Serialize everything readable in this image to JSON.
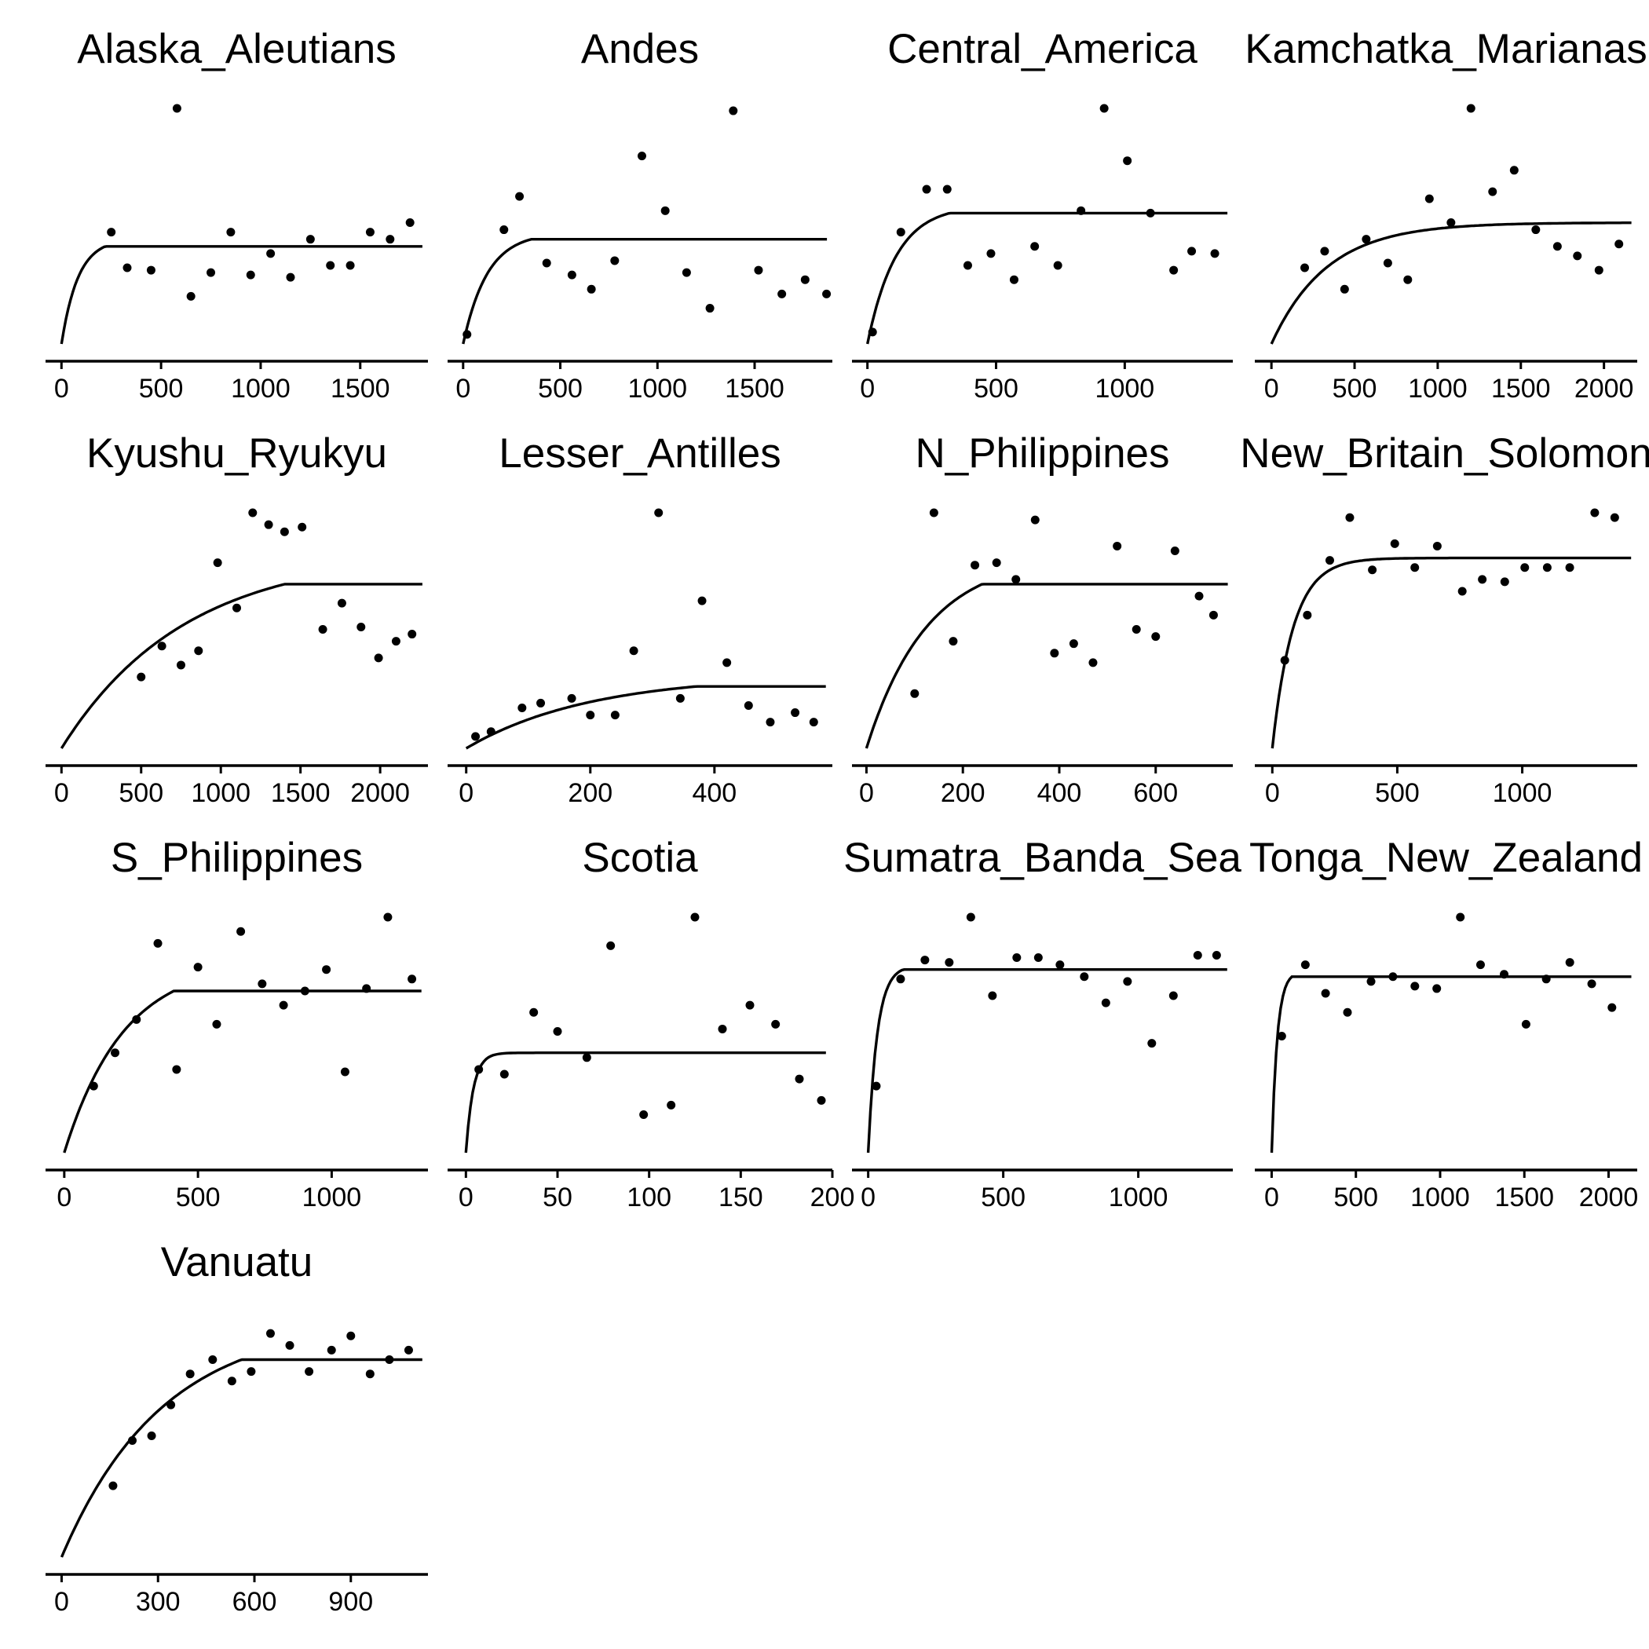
{
  "chart_data": [
    {
      "type": "scatter",
      "title": "Alaska_Aleutians",
      "x_ticks": [
        0,
        500,
        1000,
        1500
      ],
      "xlim": [
        -80,
        1840
      ],
      "ylim": [
        0,
        1
      ],
      "points": [
        [
          250,
          0.47
        ],
        [
          330,
          0.32
        ],
        [
          450,
          0.31
        ],
        [
          580,
          0.99
        ],
        [
          650,
          0.2
        ],
        [
          750,
          0.3
        ],
        [
          850,
          0.47
        ],
        [
          950,
          0.29
        ],
        [
          1050,
          0.38
        ],
        [
          1150,
          0.28
        ],
        [
          1250,
          0.44
        ],
        [
          1350,
          0.33
        ],
        [
          1450,
          0.33
        ],
        [
          1550,
          0.47
        ],
        [
          1650,
          0.44
        ],
        [
          1750,
          0.51
        ]
      ],
      "fit": {
        "plateau": 0.41,
        "x_break": 220,
        "rate": 0.012
      }
    },
    {
      "type": "scatter",
      "title": "Andes",
      "x_ticks": [
        0,
        500,
        1000,
        1500
      ],
      "xlim": [
        -80,
        1900
      ],
      "ylim": [
        0,
        1
      ],
      "points": [
        [
          20,
          0.04
        ],
        [
          210,
          0.48
        ],
        [
          290,
          0.62
        ],
        [
          430,
          0.34
        ],
        [
          560,
          0.29
        ],
        [
          660,
          0.23
        ],
        [
          780,
          0.35
        ],
        [
          920,
          0.79
        ],
        [
          1040,
          0.56
        ],
        [
          1150,
          0.3
        ],
        [
          1270,
          0.15
        ],
        [
          1390,
          0.98
        ],
        [
          1520,
          0.31
        ],
        [
          1640,
          0.21
        ],
        [
          1760,
          0.27
        ],
        [
          1870,
          0.21
        ]
      ],
      "fit": {
        "plateau": 0.44,
        "x_break": 350,
        "rate": 0.008
      }
    },
    {
      "type": "scatter",
      "title": "Central_America",
      "x_ticks": [
        0,
        500,
        1000
      ],
      "xlim": [
        -60,
        1420
      ],
      "ylim": [
        0,
        1
      ],
      "points": [
        [
          20,
          0.05
        ],
        [
          130,
          0.47
        ],
        [
          230,
          0.65
        ],
        [
          310,
          0.65
        ],
        [
          390,
          0.33
        ],
        [
          480,
          0.38
        ],
        [
          570,
          0.27
        ],
        [
          650,
          0.41
        ],
        [
          740,
          0.33
        ],
        [
          830,
          0.56
        ],
        [
          920,
          0.99
        ],
        [
          1010,
          0.77
        ],
        [
          1100,
          0.55
        ],
        [
          1190,
          0.31
        ],
        [
          1260,
          0.39
        ],
        [
          1350,
          0.38
        ]
      ],
      "fit": {
        "plateau": 0.55,
        "x_break": 320,
        "rate": 0.009
      }
    },
    {
      "type": "scatter",
      "title": "Kamchatka_Marianas",
      "x_ticks": [
        0,
        500,
        1000,
        1500,
        2000
      ],
      "xlim": [
        -100,
        2200
      ],
      "ylim": [
        0,
        1
      ],
      "points": [
        [
          200,
          0.32
        ],
        [
          320,
          0.39
        ],
        [
          440,
          0.23
        ],
        [
          570,
          0.44
        ],
        [
          700,
          0.34
        ],
        [
          820,
          0.27
        ],
        [
          950,
          0.61
        ],
        [
          1080,
          0.51
        ],
        [
          1200,
          0.99
        ],
        [
          1330,
          0.64
        ],
        [
          1460,
          0.73
        ],
        [
          1590,
          0.48
        ],
        [
          1720,
          0.41
        ],
        [
          1840,
          0.37
        ],
        [
          1970,
          0.31
        ],
        [
          2090,
          0.42
        ]
      ],
      "fit": {
        "plateau": 0.51,
        "x_break": null,
        "rate": 0.003
      }
    },
    {
      "type": "scatter",
      "title": "Kyushu_Ryukyu",
      "x_ticks": [
        0,
        500,
        1000,
        1500,
        2000
      ],
      "xlim": [
        -100,
        2300
      ],
      "ylim": [
        0,
        1
      ],
      "points": [
        [
          500,
          0.3
        ],
        [
          630,
          0.43
        ],
        [
          750,
          0.35
        ],
        [
          860,
          0.41
        ],
        [
          980,
          0.78
        ],
        [
          1100,
          0.59
        ],
        [
          1200,
          0.99
        ],
        [
          1300,
          0.94
        ],
        [
          1400,
          0.91
        ],
        [
          1510,
          0.93
        ],
        [
          1640,
          0.5
        ],
        [
          1760,
          0.61
        ],
        [
          1880,
          0.51
        ],
        [
          1990,
          0.38
        ],
        [
          2100,
          0.45
        ],
        [
          2200,
          0.48
        ]
      ],
      "fit": {
        "plateau": 0.69,
        "x_break": 1400,
        "rate": 0.0013
      }
    },
    {
      "type": "scatter",
      "title": "Lesser_Antilles",
      "x_ticks": [
        0,
        200,
        400
      ],
      "xlim": [
        -30,
        590
      ],
      "ylim": [
        0,
        1
      ],
      "points": [
        [
          15,
          0.05
        ],
        [
          40,
          0.07
        ],
        [
          90,
          0.17
        ],
        [
          120,
          0.19
        ],
        [
          170,
          0.21
        ],
        [
          200,
          0.14
        ],
        [
          240,
          0.14
        ],
        [
          270,
          0.41
        ],
        [
          310,
          0.99
        ],
        [
          345,
          0.21
        ],
        [
          380,
          0.62
        ],
        [
          420,
          0.36
        ],
        [
          455,
          0.18
        ],
        [
          490,
          0.11
        ],
        [
          530,
          0.15
        ],
        [
          560,
          0.11
        ]
      ],
      "fit": {
        "plateau": 0.26,
        "x_break": 370,
        "rate": 0.005
      }
    },
    {
      "type": "scatter",
      "title": "N_Philippines",
      "x_ticks": [
        0,
        200,
        400,
        600
      ],
      "xlim": [
        -30,
        760
      ],
      "ylim": [
        0,
        1
      ],
      "points": [
        [
          100,
          0.23
        ],
        [
          140,
          0.99
        ],
        [
          180,
          0.45
        ],
        [
          225,
          0.77
        ],
        [
          270,
          0.78
        ],
        [
          310,
          0.71
        ],
        [
          350,
          0.96
        ],
        [
          390,
          0.4
        ],
        [
          430,
          0.44
        ],
        [
          470,
          0.36
        ],
        [
          520,
          0.85
        ],
        [
          560,
          0.5
        ],
        [
          600,
          0.47
        ],
        [
          640,
          0.83
        ],
        [
          690,
          0.64
        ],
        [
          720,
          0.56
        ]
      ],
      "fit": {
        "plateau": 0.69,
        "x_break": 240,
        "rate": 0.008
      }
    },
    {
      "type": "scatter",
      "title": "New_Britain_Solomon",
      "x_ticks": [
        0,
        500,
        1000
      ],
      "xlim": [
        -70,
        1460
      ],
      "ylim": [
        0,
        1
      ],
      "points": [
        [
          50,
          0.37
        ],
        [
          140,
          0.56
        ],
        [
          230,
          0.79
        ],
        [
          310,
          0.97
        ],
        [
          400,
          0.75
        ],
        [
          490,
          0.86
        ],
        [
          570,
          0.76
        ],
        [
          660,
          0.85
        ],
        [
          760,
          0.66
        ],
        [
          840,
          0.71
        ],
        [
          930,
          0.7
        ],
        [
          1010,
          0.76
        ],
        [
          1100,
          0.76
        ],
        [
          1190,
          0.76
        ],
        [
          1290,
          0.99
        ],
        [
          1370,
          0.97
        ]
      ],
      "fit": {
        "plateau": 0.8,
        "x_break": null,
        "rate": 0.012
      }
    },
    {
      "type": "scatter",
      "title": "S_Philippines",
      "x_ticks": [
        0,
        500,
        1000
      ],
      "xlim": [
        -70,
        1360
      ],
      "ylim": [
        0,
        1
      ],
      "points": [
        [
          110,
          0.28
        ],
        [
          190,
          0.42
        ],
        [
          270,
          0.56
        ],
        [
          350,
          0.88
        ],
        [
          420,
          0.35
        ],
        [
          500,
          0.78
        ],
        [
          570,
          0.54
        ],
        [
          660,
          0.93
        ],
        [
          740,
          0.71
        ],
        [
          820,
          0.62
        ],
        [
          900,
          0.68
        ],
        [
          980,
          0.77
        ],
        [
          1050,
          0.34
        ],
        [
          1130,
          0.69
        ],
        [
          1210,
          0.99
        ],
        [
          1300,
          0.73
        ]
      ],
      "fit": {
        "plateau": 0.68,
        "x_break": 410,
        "rate": 0.0045
      }
    },
    {
      "type": "scatter",
      "title": "Scotia",
      "x_ticks": [
        0,
        50,
        100,
        150,
        200
      ],
      "xlim": [
        -10,
        200
      ],
      "ylim": [
        0,
        1
      ],
      "points": [
        [
          7,
          0.35
        ],
        [
          21,
          0.33
        ],
        [
          37,
          0.59
        ],
        [
          50,
          0.51
        ],
        [
          66,
          0.4
        ],
        [
          79,
          0.87
        ],
        [
          97,
          0.16
        ],
        [
          112,
          0.2
        ],
        [
          125,
          0.99
        ],
        [
          140,
          0.52
        ],
        [
          155,
          0.62
        ],
        [
          169,
          0.54
        ],
        [
          182,
          0.31
        ],
        [
          194,
          0.22
        ]
      ],
      "fit": {
        "plateau": 0.42,
        "x_break": null,
        "rate": 0.25
      }
    },
    {
      "type": "scatter",
      "title": "Sumatra_Banda_Sea",
      "x_ticks": [
        0,
        500,
        1000
      ],
      "xlim": [
        -60,
        1350
      ],
      "ylim": [
        0,
        1
      ],
      "points": [
        [
          30,
          0.28
        ],
        [
          120,
          0.73
        ],
        [
          210,
          0.81
        ],
        [
          300,
          0.8
        ],
        [
          380,
          0.99
        ],
        [
          460,
          0.66
        ],
        [
          550,
          0.82
        ],
        [
          630,
          0.82
        ],
        [
          710,
          0.79
        ],
        [
          800,
          0.74
        ],
        [
          880,
          0.63
        ],
        [
          960,
          0.72
        ],
        [
          1050,
          0.46
        ],
        [
          1130,
          0.66
        ],
        [
          1220,
          0.83
        ],
        [
          1290,
          0.83
        ]
      ],
      "fit": {
        "plateau": 0.77,
        "x_break": 130,
        "rate": 0.03
      }
    },
    {
      "type": "scatter",
      "title": "Tonga_New_Zealand",
      "x_ticks": [
        0,
        500,
        1000,
        1500,
        2000
      ],
      "xlim": [
        -100,
        2170
      ],
      "ylim": [
        0,
        1
      ],
      "points": [
        [
          60,
          0.49
        ],
        [
          200,
          0.79
        ],
        [
          320,
          0.67
        ],
        [
          450,
          0.59
        ],
        [
          590,
          0.72
        ],
        [
          720,
          0.74
        ],
        [
          850,
          0.7
        ],
        [
          980,
          0.69
        ],
        [
          1120,
          0.99
        ],
        [
          1240,
          0.79
        ],
        [
          1380,
          0.75
        ],
        [
          1510,
          0.54
        ],
        [
          1630,
          0.73
        ],
        [
          1770,
          0.8
        ],
        [
          1900,
          0.71
        ],
        [
          2020,
          0.61
        ]
      ],
      "fit": {
        "plateau": 0.74,
        "x_break": 120,
        "rate": 0.03
      }
    },
    {
      "type": "scatter",
      "title": "Vanuatu",
      "x_ticks": [
        0,
        300,
        600,
        900
      ],
      "xlim": [
        -50,
        1140
      ],
      "ylim": [
        0,
        1
      ],
      "points": [
        [
          160,
          0.3
        ],
        [
          220,
          0.49
        ],
        [
          280,
          0.51
        ],
        [
          340,
          0.64
        ],
        [
          400,
          0.77
        ],
        [
          470,
          0.83
        ],
        [
          530,
          0.74
        ],
        [
          590,
          0.78
        ],
        [
          650,
          0.94
        ],
        [
          710,
          0.89
        ],
        [
          770,
          0.78
        ],
        [
          840,
          0.87
        ],
        [
          900,
          0.93
        ],
        [
          960,
          0.77
        ],
        [
          1020,
          0.83
        ],
        [
          1080,
          0.87
        ]
      ],
      "fit": {
        "plateau": 0.83,
        "x_break": 560,
        "rate": 0.0032
      }
    }
  ]
}
